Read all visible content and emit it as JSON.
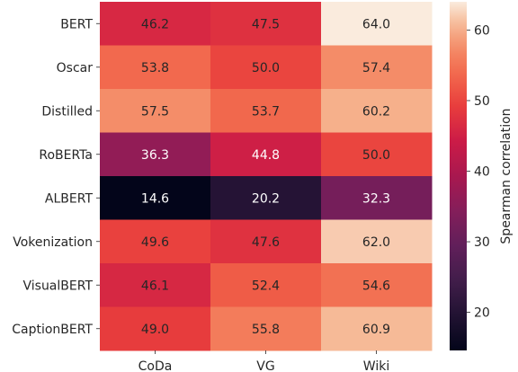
{
  "chart_data": {
    "type": "heatmap",
    "rows": [
      "BERT",
      "Oscar",
      "Distilled",
      "RoBERTa",
      "ALBERT",
      "Vokenization",
      "VisualBERT",
      "CaptionBERT"
    ],
    "columns": [
      "CoDa",
      "VG",
      "Wiki"
    ],
    "values": [
      [
        46.2,
        47.5,
        64.0
      ],
      [
        53.8,
        50.0,
        57.4
      ],
      [
        57.5,
        53.7,
        60.2
      ],
      [
        36.3,
        44.8,
        50.0
      ],
      [
        14.6,
        20.2,
        32.3
      ],
      [
        49.6,
        47.6,
        62.0
      ],
      [
        46.1,
        52.4,
        54.6
      ],
      [
        49.0,
        55.8,
        60.9
      ]
    ],
    "value_labels": [
      [
        "46.2",
        "47.5",
        "64.0"
      ],
      [
        "53.8",
        "50.0",
        "57.4"
      ],
      [
        "57.5",
        "53.7",
        "60.2"
      ],
      [
        "36.3",
        "44.8",
        "50.0"
      ],
      [
        "14.6",
        "20.2",
        "32.3"
      ],
      [
        "49.6",
        "47.6",
        "62.0"
      ],
      [
        "46.1",
        "52.4",
        "54.6"
      ],
      [
        "49.0",
        "55.8",
        "60.9"
      ]
    ],
    "colorbar": {
      "label": "Spearman correlation",
      "ticks": [
        20,
        30,
        40,
        50,
        60
      ],
      "tick_labels": [
        "20",
        "30",
        "40",
        "50",
        "60"
      ],
      "vmin": 14.6,
      "vmax": 64.0,
      "colormap": "rocket"
    },
    "grid": false
  }
}
